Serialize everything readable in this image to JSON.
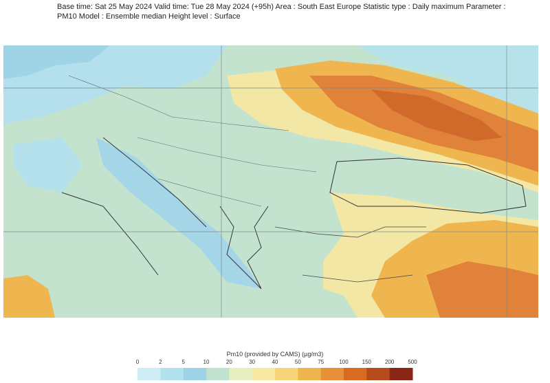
{
  "header": {
    "text": "Base time: Sat 25 May 2024 Valid time: Tue 28 May 2024 (+95h) Area : South East Europe Statistic type : Daily maximum Parameter : PM10 Model : Ensemble median Height level : Surface"
  },
  "legend": {
    "title": "Pm10 (provided by CAMS) (µg/m3)",
    "ticks": [
      0,
      2,
      5,
      10,
      20,
      30,
      40,
      50,
      75,
      100,
      150,
      200,
      500
    ],
    "colors": [
      "#cdeef5",
      "#b3e2ef",
      "#9dd3e6",
      "#bfe3cf",
      "#e6efbf",
      "#f7e9a2",
      "#f6d679",
      "#efb64f",
      "#e6913a",
      "#d86a21",
      "#b54a1a",
      "#8b2716"
    ]
  }
}
